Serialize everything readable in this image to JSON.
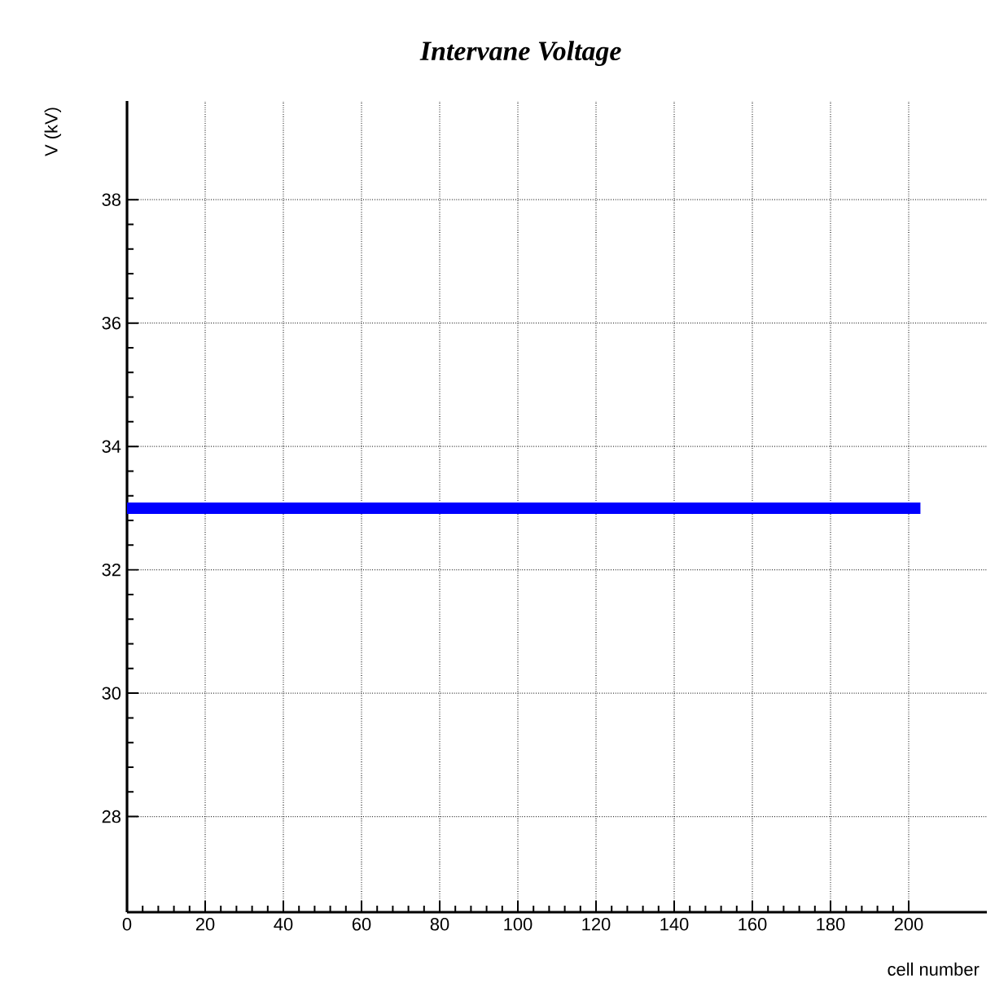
{
  "chart_data": {
    "type": "line",
    "title": "Intervane Voltage",
    "xlabel": "cell number",
    "ylabel": "V (kV)",
    "xlim": [
      0,
      220
    ],
    "ylim": [
      26.45,
      39.6
    ],
    "xticks": [
      0,
      20,
      40,
      60,
      80,
      100,
      120,
      140,
      160,
      180,
      200
    ],
    "yticks": [
      28,
      30,
      32,
      34,
      36,
      38
    ],
    "grid": true,
    "line_style": "solid",
    "series": [
      {
        "color": "#0000ff",
        "x": [
          0,
          203
        ],
        "values": [
          33,
          33
        ]
      }
    ]
  }
}
